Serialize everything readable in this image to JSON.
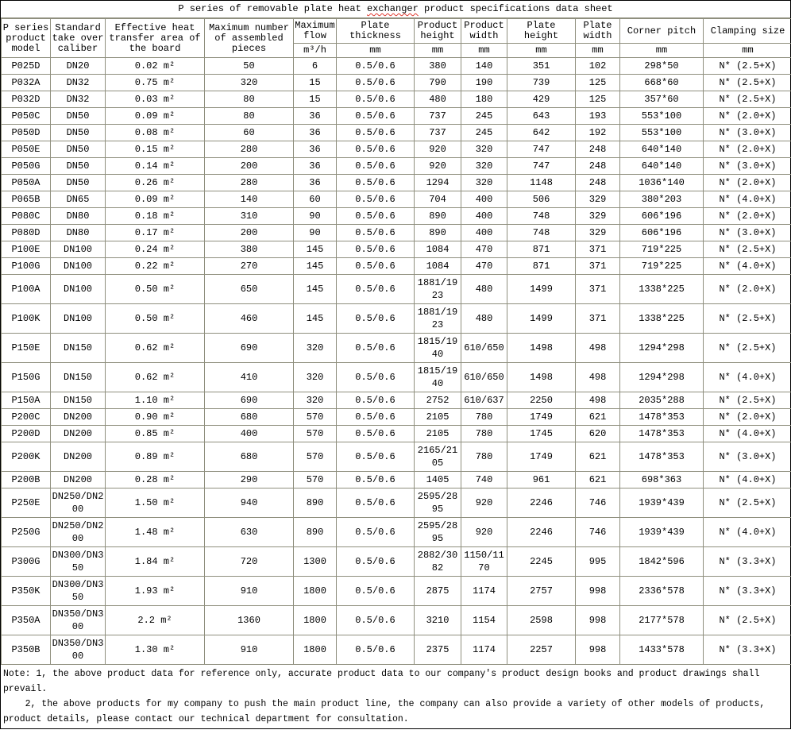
{
  "title": {
    "pre": "P series of removable plate heat ",
    "marked": "exchanger",
    "post": " product specifications data sheet"
  },
  "table": {
    "col_keys": [
      "model",
      "caliber",
      "area",
      "pieces",
      "max-flow",
      "plate-thickness",
      "product-height",
      "product-width",
      "plate-height",
      "plate-width",
      "corner-pitch",
      "clamping-size"
    ],
    "columns": [
      {
        "label": "P series product model",
        "unit": ""
      },
      {
        "label": "Standard take over caliber",
        "unit": ""
      },
      {
        "label": "Effective heat transfer area of the board",
        "unit": ""
      },
      {
        "label": "Maximum number of assembled pieces",
        "unit": ""
      },
      {
        "label": "Maximum flow",
        "unit": "m³/h"
      },
      {
        "label": "Plate thickness",
        "unit": "mm"
      },
      {
        "label": "Product height",
        "unit": "mm"
      },
      {
        "label": "Product width",
        "unit": "mm"
      },
      {
        "label": "Plate height",
        "unit": "mm"
      },
      {
        "label": "Plate width",
        "unit": "mm"
      },
      {
        "label": "Corner pitch",
        "unit": "mm"
      },
      {
        "label": "Clamping size",
        "unit": "mm"
      }
    ],
    "rows": [
      [
        "P025D",
        "DN20",
        "0.02 m²",
        "50",
        "6",
        "0.5/0.6",
        "380",
        "140",
        "351",
        "102",
        "298*50",
        "N* (2.5+X)"
      ],
      [
        "P032A",
        "DN32",
        "0.75 m²",
        "320",
        "15",
        "0.5/0.6",
        "790",
        "190",
        "739",
        "125",
        "668*60",
        "N* (2.5+X)"
      ],
      [
        "P032D",
        "DN32",
        "0.03 m²",
        "80",
        "15",
        "0.5/0.6",
        "480",
        "180",
        "429",
        "125",
        "357*60",
        "N* (2.5+X)"
      ],
      [
        "P050C",
        "DN50",
        "0.09 m²",
        "80",
        "36",
        "0.5/0.6",
        "737",
        "245",
        "643",
        "193",
        "553*100",
        "N* (2.0+X)"
      ],
      [
        "P050D",
        "DN50",
        "0.08 m²",
        "60",
        "36",
        "0.5/0.6",
        "737",
        "245",
        "642",
        "192",
        "553*100",
        "N* (3.0+X)"
      ],
      [
        "P050E",
        "DN50",
        "0.15 m²",
        "280",
        "36",
        "0.5/0.6",
        "920",
        "320",
        "747",
        "248",
        "640*140",
        "N* (2.0+X)"
      ],
      [
        "P050G",
        "DN50",
        "0.14 m²",
        "200",
        "36",
        "0.5/0.6",
        "920",
        "320",
        "747",
        "248",
        "640*140",
        "N* (3.0+X)"
      ],
      [
        "P050A",
        "DN50",
        "0.26 m²",
        "280",
        "36",
        "0.5/0.6",
        "1294",
        "320",
        "1148",
        "248",
        "1036*140",
        "N* (2.0+X)"
      ],
      [
        "P065B",
        "DN65",
        "0.09 m²",
        "140",
        "60",
        "0.5/0.6",
        "704",
        "400",
        "506",
        "329",
        "380*203",
        "N* (4.0+X)"
      ],
      [
        "P080C",
        "DN80",
        "0.18 m²",
        "310",
        "90",
        "0.5/0.6",
        "890",
        "400",
        "748",
        "329",
        "606*196",
        "N* (2.0+X)"
      ],
      [
        "P080D",
        "DN80",
        "0.17 m²",
        "200",
        "90",
        "0.5/0.6",
        "890",
        "400",
        "748",
        "329",
        "606*196",
        "N* (3.0+X)"
      ],
      [
        "P100E",
        "DN100",
        "0.24 m²",
        "380",
        "145",
        "0.5/0.6",
        "1084",
        "470",
        "871",
        "371",
        "719*225",
        "N* (2.5+X)"
      ],
      [
        "P100G",
        "DN100",
        "0.22 m²",
        "270",
        "145",
        "0.5/0.6",
        "1084",
        "470",
        "871",
        "371",
        "719*225",
        "N* (4.0+X)"
      ],
      [
        "P100A",
        "DN100",
        "0.50 m²",
        "650",
        "145",
        "0.5/0.6",
        "1881/1923",
        "480",
        "1499",
        "371",
        "1338*225",
        "N* (2.0+X)"
      ],
      [
        "P100K",
        "DN100",
        "0.50 m²",
        "460",
        "145",
        "0.5/0.6",
        "1881/1923",
        "480",
        "1499",
        "371",
        "1338*225",
        "N* (2.5+X)"
      ],
      [
        "P150E",
        "DN150",
        "0.62 m²",
        "690",
        "320",
        "0.5/0.6",
        "1815/1940",
        "610/650",
        "1498",
        "498",
        "1294*298",
        "N* (2.5+X)"
      ],
      [
        "P150G",
        "DN150",
        "0.62 m²",
        "410",
        "320",
        "0.5/0.6",
        "1815/1940",
        "610/650",
        "1498",
        "498",
        "1294*298",
        "N* (4.0+X)"
      ],
      [
        "P150A",
        "DN150",
        "1.10 m²",
        "690",
        "320",
        "0.5/0.6",
        "2752",
        "610/637",
        "2250",
        "498",
        "2035*288",
        "N* (2.5+X)"
      ],
      [
        "P200C",
        "DN200",
        "0.90 m²",
        "680",
        "570",
        "0.5/0.6",
        "2105",
        "780",
        "1749",
        "621",
        "1478*353",
        "N* (2.0+X)"
      ],
      [
        "P200D",
        "DN200",
        "0.85 m²",
        "400",
        "570",
        "0.5/0.6",
        "2105",
        "780",
        "1745",
        "620",
        "1478*353",
        "N* (4.0+X)"
      ],
      [
        "P200K",
        "DN200",
        "0.89 m²",
        "680",
        "570",
        "0.5/0.6",
        "2165/2105",
        "780",
        "1749",
        "621",
        "1478*353",
        "N* (3.0+X)"
      ],
      [
        "P200B",
        "DN200",
        "0.28 m²",
        "290",
        "570",
        "0.5/0.6",
        "1405",
        "740",
        "961",
        "621",
        "698*363",
        "N* (4.0+X)"
      ],
      [
        "P250E",
        "DN250/DN200",
        "1.50 m²",
        "940",
        "890",
        "0.5/0.6",
        "2595/2895",
        "920",
        "2246",
        "746",
        "1939*439",
        "N* (2.5+X)"
      ],
      [
        "P250G",
        "DN250/DN200",
        "1.48 m²",
        "630",
        "890",
        "0.5/0.6",
        "2595/2895",
        "920",
        "2246",
        "746",
        "1939*439",
        "N* (4.0+X)"
      ],
      [
        "P300G",
        "DN300/DN350",
        "1.84 m²",
        "720",
        "1300",
        "0.5/0.6",
        "2882/3082",
        "1150/1170",
        "2245",
        "995",
        "1842*596",
        "N* (3.3+X)"
      ],
      [
        "P350K",
        "DN300/DN350",
        "1.93 m²",
        "910",
        "1800",
        "0.5/0.6",
        "2875",
        "1174",
        "2757",
        "998",
        "2336*578",
        "N* (3.3+X)"
      ],
      [
        "P350A",
        "DN350/DN300",
        "2.2 m²",
        "1360",
        "1800",
        "0.5/0.6",
        "3210",
        "1154",
        "2598",
        "998",
        "2177*578",
        "N* (2.5+X)"
      ],
      [
        "P350B",
        "DN350/DN300",
        "1.30 m²",
        "910",
        "1800",
        "0.5/0.6",
        "2375",
        "1174",
        "2257",
        "998",
        "1433*578",
        "N* (3.3+X)"
      ]
    ]
  },
  "notes": {
    "lines": [
      "Note: 1, the above product data for reference only, accurate product data to our company's product design books and product drawings shall",
      "prevail.",
      "    2, the above products for my company to push the main product line, the company can also provide a variety of other models of products,",
      "product details, please contact our technical department for consultation."
    ]
  },
  "colors": {
    "grid_line": "#8f8f7e",
    "outer_border": "#000000",
    "spellcheck_underline": "#e03a2f",
    "text": "#000000",
    "background": "#ffffff"
  }
}
